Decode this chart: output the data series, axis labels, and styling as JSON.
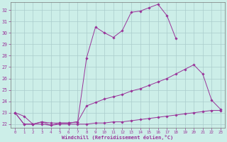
{
  "xlabel": "Windchill (Refroidissement éolien,°C)",
  "background_color": "#cceee8",
  "line_color": "#993399",
  "grid_color": "#aacccc",
  "xlim": [
    -0.5,
    23.5
  ],
  "ylim": [
    21.7,
    32.7
  ],
  "yticks": [
    22,
    23,
    24,
    25,
    26,
    27,
    28,
    29,
    30,
    31,
    32
  ],
  "xticks": [
    0,
    1,
    2,
    3,
    4,
    5,
    6,
    7,
    8,
    9,
    10,
    11,
    12,
    13,
    14,
    15,
    16,
    17,
    18,
    19,
    20,
    21,
    22,
    23
  ],
  "series": [
    {
      "x": [
        0,
        1,
        2,
        3,
        4,
        5,
        6,
        7,
        8,
        9,
        10,
        11,
        12,
        13,
        14,
        15,
        16,
        17,
        18
      ],
      "y": [
        23.0,
        22.7,
        22.0,
        22.2,
        21.9,
        22.1,
        22.1,
        22.2,
        27.8,
        30.5,
        30.0,
        29.6,
        30.2,
        31.8,
        31.9,
        32.2,
        32.5,
        31.5,
        29.5
      ]
    },
    {
      "x": [
        0,
        1,
        2,
        3,
        4,
        5,
        6,
        7,
        8,
        9,
        10,
        11,
        12,
        13,
        14,
        15,
        16,
        17,
        18,
        19,
        20,
        21,
        22,
        23
      ],
      "y": [
        23.0,
        22.0,
        22.0,
        22.2,
        22.1,
        22.1,
        22.1,
        22.2,
        23.6,
        23.9,
        24.2,
        24.4,
        24.6,
        24.9,
        25.1,
        25.4,
        25.7,
        26.0,
        26.4,
        26.8,
        27.2,
        26.4,
        24.1,
        23.3
      ]
    },
    {
      "x": [
        0,
        1,
        2,
        3,
        4,
        5,
        6,
        7,
        8,
        9,
        10,
        11,
        12,
        13,
        14,
        15,
        16,
        17,
        18,
        19,
        20,
        21,
        22,
        23
      ],
      "y": [
        23.0,
        22.0,
        22.0,
        22.0,
        21.9,
        22.0,
        22.0,
        22.0,
        22.0,
        22.1,
        22.1,
        22.2,
        22.2,
        22.3,
        22.4,
        22.5,
        22.6,
        22.7,
        22.8,
        22.9,
        23.0,
        23.1,
        23.2,
        23.2
      ]
    }
  ]
}
